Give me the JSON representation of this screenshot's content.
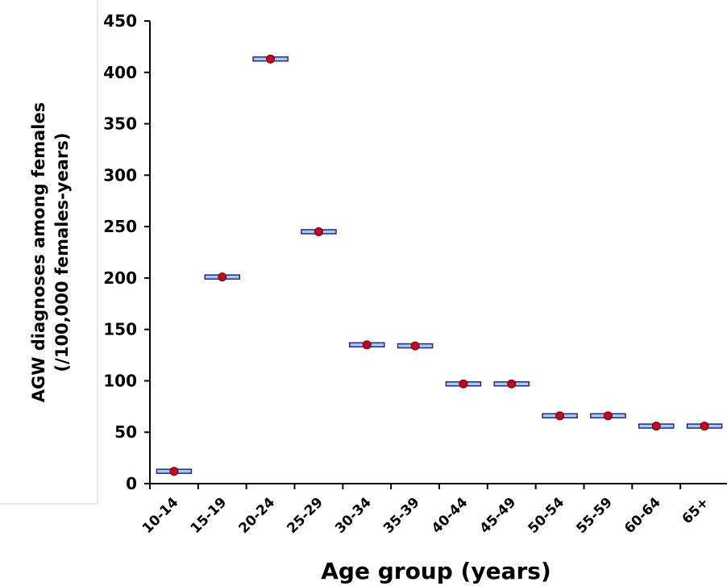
{
  "chart_data": {
    "type": "scatter",
    "categories": [
      "10-14",
      "15-19",
      "20-24",
      "25-29",
      "30-34",
      "35-39",
      "40-44",
      "45-49",
      "50-54",
      "55-59",
      "60-64",
      "65+"
    ],
    "values": [
      12,
      201,
      413,
      245,
      135,
      134,
      97,
      97,
      66,
      66,
      56,
      56
    ],
    "xlabel": "Age group (years)",
    "ylabel": [
      "AGW diagnoses among females",
      "(/100,000 females-years)"
    ],
    "ylim": [
      0,
      450
    ],
    "yticks": [
      0,
      50,
      100,
      150,
      200,
      250,
      300,
      350,
      400,
      450
    ],
    "grid": false,
    "colors": {
      "marker": "#c0081f",
      "box_fill": "#a9c8ef",
      "box_edge": "#1f2a86"
    }
  }
}
